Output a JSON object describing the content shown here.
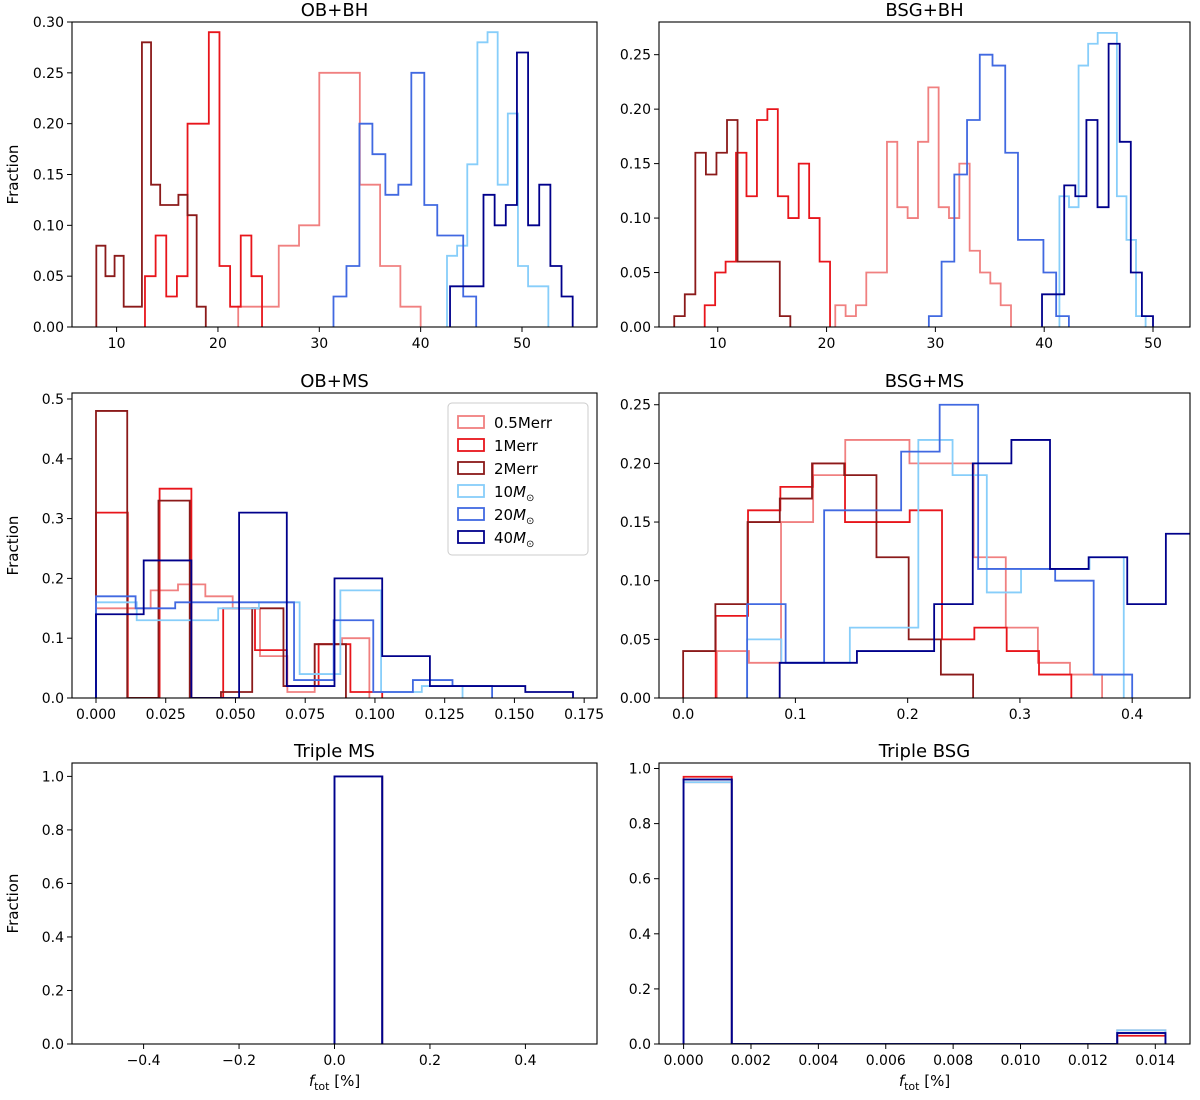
{
  "figure": {
    "description_free": true
  },
  "legend": {
    "entries": [
      {
        "key": "s05",
        "label": "0.5Merr",
        "color": "#f08080"
      },
      {
        "key": "s1",
        "label": "1Merr",
        "color": "#e8151b"
      },
      {
        "key": "s2",
        "label": "2Merr",
        "color": "#8b1a1a"
      },
      {
        "key": "s10",
        "label": "10M",
        "sub": "⊙",
        "color": "#87cefa"
      },
      {
        "key": "s20",
        "label": "20M",
        "sub": "⊙",
        "color": "#4169e1"
      },
      {
        "key": "s40",
        "label": "40M",
        "sub": "⊙",
        "color": "#00008b"
      }
    ]
  },
  "chart_data": [
    {
      "id": "ob_bh",
      "type": "histogram",
      "title": "OB+BH",
      "ylabel": "Fraction",
      "xlabel": "",
      "xlim": [
        5.6,
        57.4
      ],
      "ylim": [
        0,
        0.3
      ],
      "xticks": [
        10,
        20,
        30,
        40,
        50
      ],
      "yticks": [
        0,
        0.05,
        0.1,
        0.15,
        0.2,
        0.25,
        0.3
      ],
      "yticklabels": [
        "0.00",
        "0.05",
        "0.10",
        "0.15",
        "0.20",
        "0.25",
        "0.30"
      ],
      "series": [
        {
          "name": "0.5Merr",
          "color": "#f08080",
          "x0": 22.0,
          "width": 2.0,
          "values": [
            0.02,
            0.02,
            0.08,
            0.1,
            0.25,
            0.25,
            0.14,
            0.06,
            0.02
          ]
        },
        {
          "name": "1Merr",
          "color": "#e8151b",
          "x0": 12.8,
          "width": 1.05,
          "values": [
            0.05,
            0.09,
            0.03,
            0.05,
            0.2,
            0.2,
            0.29,
            0.06,
            0.02,
            0.09,
            0.05
          ]
        },
        {
          "name": "2Merr",
          "color": "#8b1a1a",
          "x0": 8.0,
          "width": 0.9,
          "values": [
            0.08,
            0.05,
            0.07,
            0.02,
            0.02,
            0.28,
            0.14,
            0.12,
            0.12,
            0.13,
            0.11,
            0.02
          ]
        },
        {
          "name": "10M⊙",
          "color": "#87cefa",
          "x0": 42.6,
          "width": 1.0,
          "values": [
            0.07,
            0.08,
            0.16,
            0.28,
            0.29,
            0.14,
            0.21,
            0.06,
            0.04,
            0.04
          ]
        },
        {
          "name": "20M⊙",
          "color": "#4169e1",
          "x0": 31.4,
          "width": 1.28,
          "values": [
            0.03,
            0.06,
            0.2,
            0.17,
            0.13,
            0.14,
            0.25,
            0.12,
            0.09,
            0.09,
            0.03
          ]
        },
        {
          "name": "40M⊙",
          "color": "#00008b",
          "x0": 42.9,
          "width": 1.1,
          "values": [
            0.04,
            0.04,
            0.04,
            0.13,
            0.1,
            0.12,
            0.27,
            0.1,
            0.14,
            0.06,
            0.03
          ]
        }
      ]
    },
    {
      "id": "bsg_bh",
      "type": "histogram",
      "title": "BSG+BH",
      "ylabel": "",
      "xlabel": "",
      "xlim": [
        4.6,
        53.4
      ],
      "ylim": [
        0,
        0.28
      ],
      "xticks": [
        10,
        20,
        30,
        40,
        50
      ],
      "yticks": [
        0,
        0.05,
        0.1,
        0.15,
        0.2,
        0.25
      ],
      "yticklabels": [
        "0.00",
        "0.05",
        "0.10",
        "0.15",
        "0.20",
        "0.25"
      ],
      "series": [
        {
          "name": "0.5Merr",
          "color": "#f08080",
          "x0": 20.8,
          "width": 0.95,
          "values": [
            0.02,
            0.01,
            0.02,
            0.05,
            0.05,
            0.17,
            0.11,
            0.1,
            0.17,
            0.22,
            0.11,
            0.1,
            0.15,
            0.07,
            0.05,
            0.04,
            0.02
          ]
        },
        {
          "name": "1Merr",
          "color": "#e8151b",
          "x0": 8.8,
          "width": 0.96,
          "values": [
            0.02,
            0.05,
            0.06,
            0.16,
            0.12,
            0.19,
            0.2,
            0.12,
            0.1,
            0.15,
            0.1,
            0.06
          ]
        },
        {
          "name": "2Merr",
          "color": "#8b1a1a",
          "x0": 6.0,
          "width": 0.97,
          "values": [
            0.01,
            0.03,
            0.16,
            0.14,
            0.16,
            0.19,
            0.06,
            0.06,
            0.06,
            0.06,
            0.01
          ]
        },
        {
          "name": "10M⊙",
          "color": "#87cefa",
          "x0": 41.4,
          "width": 0.88,
          "values": [
            0.12,
            0.11,
            0.24,
            0.26,
            0.27,
            0.27,
            0.12,
            0.08,
            0.01
          ]
        },
        {
          "name": "20M⊙",
          "color": "#4169e1",
          "x0": 29.4,
          "width": 1.17,
          "values": [
            0.01,
            0.06,
            0.14,
            0.19,
            0.25,
            0.24,
            0.16,
            0.08,
            0.08,
            0.05,
            0.01
          ]
        },
        {
          "name": "40M⊙",
          "color": "#00008b",
          "x0": 39.8,
          "width": 1.02,
          "values": [
            0.03,
            0.03,
            0.13,
            0.12,
            0.19,
            0.11,
            0.26,
            0.17,
            0.05,
            0.01
          ]
        }
      ]
    },
    {
      "id": "ob_ms",
      "type": "histogram",
      "title": "OB+MS",
      "ylabel": "Fraction",
      "xlabel": "",
      "legend": "top-right",
      "xlim": [
        -0.0086,
        0.1796
      ],
      "ylim": [
        0,
        0.51
      ],
      "xticks": [
        0,
        0.025,
        0.05,
        0.075,
        0.1,
        0.125,
        0.15,
        0.175
      ],
      "xticklabels": [
        "0.000",
        "0.025",
        "0.050",
        "0.075",
        "0.100",
        "0.125",
        "0.150",
        "0.175"
      ],
      "yticks": [
        0,
        0.1,
        0.2,
        0.3,
        0.4,
        0.5
      ],
      "yticklabels": [
        "0.0",
        "0.1",
        "0.2",
        "0.3",
        "0.4",
        "0.5"
      ],
      "series": [
        {
          "name": "0.5Merr",
          "color": "#f08080",
          "x0": 0,
          "width": 0.0098,
          "values": [
            0.15,
            0.15,
            0.18,
            0.19,
            0.17,
            0.15,
            0.07,
            0.01,
            0.09,
            0.1
          ]
        },
        {
          "name": "1Merr",
          "color": "#e8151b",
          "x0": 0,
          "width": 0.0114,
          "values": [
            0.31,
            0.0,
            0.35,
            0.0,
            0.15,
            0.08,
            0.02,
            0.09,
            0.01
          ]
        },
        {
          "name": "2Merr",
          "color": "#8b1a1a",
          "x0": 0,
          "width": 0.0112,
          "values": [
            0.48,
            0.0,
            0.33,
            0.0,
            0.01,
            0.15,
            0.02,
            0.09
          ]
        },
        {
          "name": "10M⊙",
          "color": "#87cefa",
          "x0": 0,
          "width": 0.0146,
          "values": [
            0.16,
            0.13,
            0.13,
            0.15,
            0.16,
            0.04,
            0.18,
            0.01,
            0.02
          ]
        },
        {
          "name": "20M⊙",
          "color": "#4169e1",
          "x0": 0,
          "width": 0.0142,
          "values": [
            0.17,
            0.15,
            0.16,
            0.16,
            0.16,
            0.03,
            0.13,
            0.01,
            0.03,
            0.02
          ]
        },
        {
          "name": "40M⊙",
          "color": "#00008b",
          "x0": 0,
          "width": 0.0171,
          "values": [
            0.14,
            0.23,
            0.0,
            0.31,
            0.02,
            0.2,
            0.07,
            0.02,
            0.02,
            0.01
          ]
        }
      ]
    },
    {
      "id": "bsg_ms",
      "type": "histogram",
      "title": "BSG+MS",
      "ylabel": "",
      "xlabel": "",
      "xlim": [
        -0.0215,
        0.4515
      ],
      "ylim": [
        0,
        0.26
      ],
      "xticks": [
        0,
        0.1,
        0.2,
        0.3,
        0.4
      ],
      "xticklabels": [
        "0.0",
        "0.1",
        "0.2",
        "0.3",
        "0.4"
      ],
      "yticks": [
        0,
        0.05,
        0.1,
        0.15,
        0.2,
        0.25
      ],
      "yticklabels": [
        "0.00",
        "0.05",
        "0.10",
        "0.15",
        "0.20",
        "0.25"
      ],
      "series": [
        {
          "name": "0.5Merr",
          "color": "#f08080",
          "x0": 0.03,
          "width": 0.0286,
          "values": [
            0.04,
            0.03,
            0.15,
            0.19,
            0.22,
            0.22,
            0.2,
            0.2,
            0.12,
            0.06,
            0.03,
            0.02
          ]
        },
        {
          "name": "1Merr",
          "color": "#e8151b",
          "x0": 0.029,
          "width": 0.0288,
          "values": [
            0.07,
            0.16,
            0.18,
            0.2,
            0.15,
            0.15,
            0.16,
            0.05,
            0.06,
            0.04,
            0.02
          ]
        },
        {
          "name": "2Merr",
          "color": "#8b1a1a",
          "x0": 0,
          "width": 0.0287,
          "values": [
            0.04,
            0.08,
            0.15,
            0.17,
            0.2,
            0.19,
            0.12,
            0.05,
            0.02
          ]
        },
        {
          "name": "10M⊙",
          "color": "#87cefa",
          "x0": 0.057,
          "width": 0.0305,
          "values": [
            0.05,
            0.03,
            0.03,
            0.06,
            0.06,
            0.22,
            0.19,
            0.09,
            0.11,
            0.11,
            0.12
          ]
        },
        {
          "name": "20M⊙",
          "color": "#4169e1",
          "x0": 0.057,
          "width": 0.0343,
          "values": [
            0.08,
            0.03,
            0.16,
            0.16,
            0.21,
            0.25,
            0.11,
            0.11,
            0.1,
            0.02
          ]
        },
        {
          "name": "40M⊙",
          "color": "#00008b",
          "x0": 0.086,
          "width": 0.0344,
          "values": [
            0.03,
            0.03,
            0.04,
            0.04,
            0.08,
            0.2,
            0.22,
            0.11,
            0.12,
            0.08,
            0.14
          ]
        }
      ]
    },
    {
      "id": "triple_ms",
      "type": "histogram",
      "title": "Triple MS",
      "ylabel": "Fraction",
      "xlabel": "f_tot [%]",
      "xlabel_main": "f",
      "xlabel_sub": "tot",
      "xlabel_rest": " [%]",
      "xlim": [
        -0.55,
        0.55
      ],
      "ylim": [
        0,
        1.05
      ],
      "xticks": [
        -0.4,
        -0.2,
        0,
        0.2,
        0.4
      ],
      "xticklabels": [
        "−0.4",
        "−0.2",
        "0.0",
        "0.2",
        "0.4"
      ],
      "yticks": [
        0,
        0.2,
        0.4,
        0.6,
        0.8,
        1.0
      ],
      "yticklabels": [
        "0.0",
        "0.2",
        "0.4",
        "0.6",
        "0.8",
        "1.0"
      ],
      "series": [
        {
          "name": "0.5Merr",
          "color": "#f08080",
          "x0": 0,
          "width": 0.1,
          "values": [
            1.0
          ]
        },
        {
          "name": "1Merr",
          "color": "#e8151b",
          "x0": 0,
          "width": 0.1,
          "values": [
            1.0
          ]
        },
        {
          "name": "2Merr",
          "color": "#8b1a1a",
          "x0": 0,
          "width": 0.1,
          "values": [
            1.0
          ]
        },
        {
          "name": "10M⊙",
          "color": "#87cefa",
          "x0": 0,
          "width": 0.1,
          "values": [
            1.0
          ]
        },
        {
          "name": "20M⊙",
          "color": "#4169e1",
          "x0": 0,
          "width": 0.1,
          "values": [
            1.0
          ]
        },
        {
          "name": "40M⊙",
          "color": "#00008b",
          "x0": 0,
          "width": 0.1,
          "values": [
            1.0
          ]
        }
      ]
    },
    {
      "id": "triple_bsg",
      "type": "histogram",
      "title": "Triple BSG",
      "ylabel": "",
      "xlabel": "f_tot [%]",
      "xlabel_main": "f",
      "xlabel_sub": "tot",
      "xlabel_rest": " [%]",
      "xlim": [
        -0.00073,
        0.01503
      ],
      "ylim": [
        0,
        1.02
      ],
      "xticks": [
        0,
        0.002,
        0.004,
        0.006,
        0.008,
        0.01,
        0.012,
        0.014
      ],
      "xticklabels": [
        "0.000",
        "0.002",
        "0.004",
        "0.006",
        "0.008",
        "0.010",
        "0.012",
        "0.014"
      ],
      "yticks": [
        0,
        0.2,
        0.4,
        0.6,
        0.8,
        1.0
      ],
      "yticklabels": [
        "0.0",
        "0.2",
        "0.4",
        "0.6",
        "0.8",
        "1.0"
      ],
      "series": [
        {
          "name": "0.5Merr",
          "color": "#f08080",
          "x0": 0,
          "width": 0.00143,
          "values": [
            0.95,
            0,
            0,
            0,
            0,
            0,
            0,
            0,
            0,
            0.05
          ]
        },
        {
          "name": "1Merr",
          "color": "#e8151b",
          "x0": 0,
          "width": 0.00143,
          "values": [
            0.97,
            0,
            0,
            0,
            0,
            0,
            0,
            0,
            0,
            0.03
          ]
        },
        {
          "name": "2Merr",
          "color": "#8b1a1a",
          "x0": 0,
          "width": 0.00143,
          "values": [
            0.96,
            0,
            0,
            0,
            0,
            0,
            0,
            0,
            0,
            0.04
          ]
        },
        {
          "name": "10M⊙",
          "color": "#87cefa",
          "x0": 0,
          "width": 0.00143,
          "values": [
            0.95,
            0,
            0,
            0,
            0,
            0,
            0,
            0,
            0,
            0.05
          ]
        },
        {
          "name": "20M⊙",
          "color": "#4169e1",
          "x0": 0,
          "width": 0.00143,
          "values": [
            0.96,
            0,
            0,
            0,
            0,
            0,
            0,
            0,
            0,
            0.04
          ]
        },
        {
          "name": "40M⊙",
          "color": "#00008b",
          "x0": 0,
          "width": 0.00143,
          "values": [
            0.96,
            0,
            0,
            0,
            0,
            0,
            0,
            0,
            0,
            0.04
          ]
        }
      ]
    }
  ]
}
